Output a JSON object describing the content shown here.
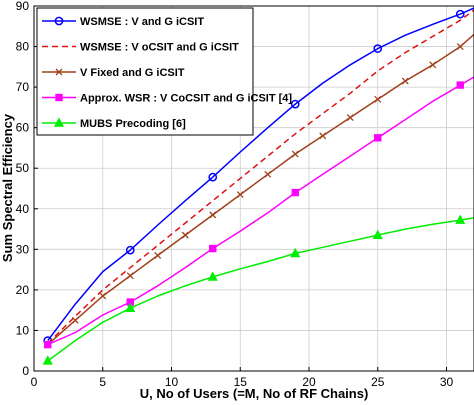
{
  "chart_data": {
    "type": "line",
    "xlabel": "U, No of Users (=M, No of RF Chains)",
    "ylabel": "Sum Spectral Efficiency",
    "xlim": [
      0,
      32
    ],
    "ylim": [
      0,
      90
    ],
    "xticks": [
      0,
      5,
      10,
      15,
      20,
      25,
      30
    ],
    "yticks": [
      0,
      10,
      20,
      30,
      40,
      50,
      60,
      70,
      80,
      90
    ],
    "grid": true,
    "legend_position": "top-left",
    "x": [
      1,
      3,
      5,
      7,
      9,
      11,
      13,
      15,
      17,
      19,
      21,
      23,
      25,
      27,
      29,
      31,
      32
    ],
    "series": [
      {
        "name": "WSMSE : V and G iCSIT",
        "color": "#0000ff",
        "linestyle": "solid",
        "marker": "circle",
        "marker_x": [
          1,
          7,
          13,
          19,
          25,
          31
        ],
        "values": [
          7.5,
          16.5,
          24.5,
          29.8,
          36,
          42,
          47.8,
          54,
          60,
          65.8,
          71,
          75.5,
          79.5,
          82.8,
          85.5,
          88,
          89.5
        ]
      },
      {
        "name": "WSMSE : V oCSIT and G iCSIT",
        "color": "#e01010",
        "linestyle": "dashed",
        "marker": "none",
        "marker_x": [],
        "values": [
          6.8,
          13.5,
          20,
          25.5,
          31,
          36.5,
          42,
          47.5,
          53,
          58.5,
          63.5,
          68.5,
          74,
          78.5,
          82.5,
          86.5,
          89
        ]
      },
      {
        "name": "V Fixed and G iCSIT",
        "color": "#a0401a",
        "linestyle": "solid",
        "marker": "x",
        "marker_x": [
          3,
          5,
          7,
          9,
          11,
          13,
          15,
          17,
          19,
          21,
          23,
          25,
          27,
          29,
          31
        ],
        "values": [
          6.5,
          12.5,
          18.5,
          23.5,
          28.5,
          33.5,
          38.5,
          43.5,
          48.5,
          53.5,
          58,
          62.5,
          67,
          71.5,
          75.5,
          80,
          83
        ]
      },
      {
        "name": "Approx. WSR : V CoCSIT and G iCSIT [4]",
        "color": "#ff00ff",
        "linestyle": "solid",
        "marker": "square",
        "marker_x": [
          1,
          7,
          13,
          19,
          25,
          31
        ],
        "values": [
          6.5,
          9.5,
          13.8,
          17,
          21,
          25.5,
          30.2,
          34.5,
          39,
          44,
          48.5,
          53,
          57.5,
          62,
          66.5,
          70.5,
          72.5
        ]
      },
      {
        "name": "MUBS Precoding [6]",
        "color": "#00ee00",
        "linestyle": "solid",
        "marker": "triangle",
        "marker_x": [
          1,
          7,
          13,
          19,
          25,
          31
        ],
        "values": [
          2.5,
          7.5,
          12,
          15.5,
          18.5,
          21,
          23.2,
          25.2,
          27,
          29,
          30.5,
          32,
          33.5,
          35,
          36.2,
          37.2,
          37.8
        ]
      }
    ]
  }
}
